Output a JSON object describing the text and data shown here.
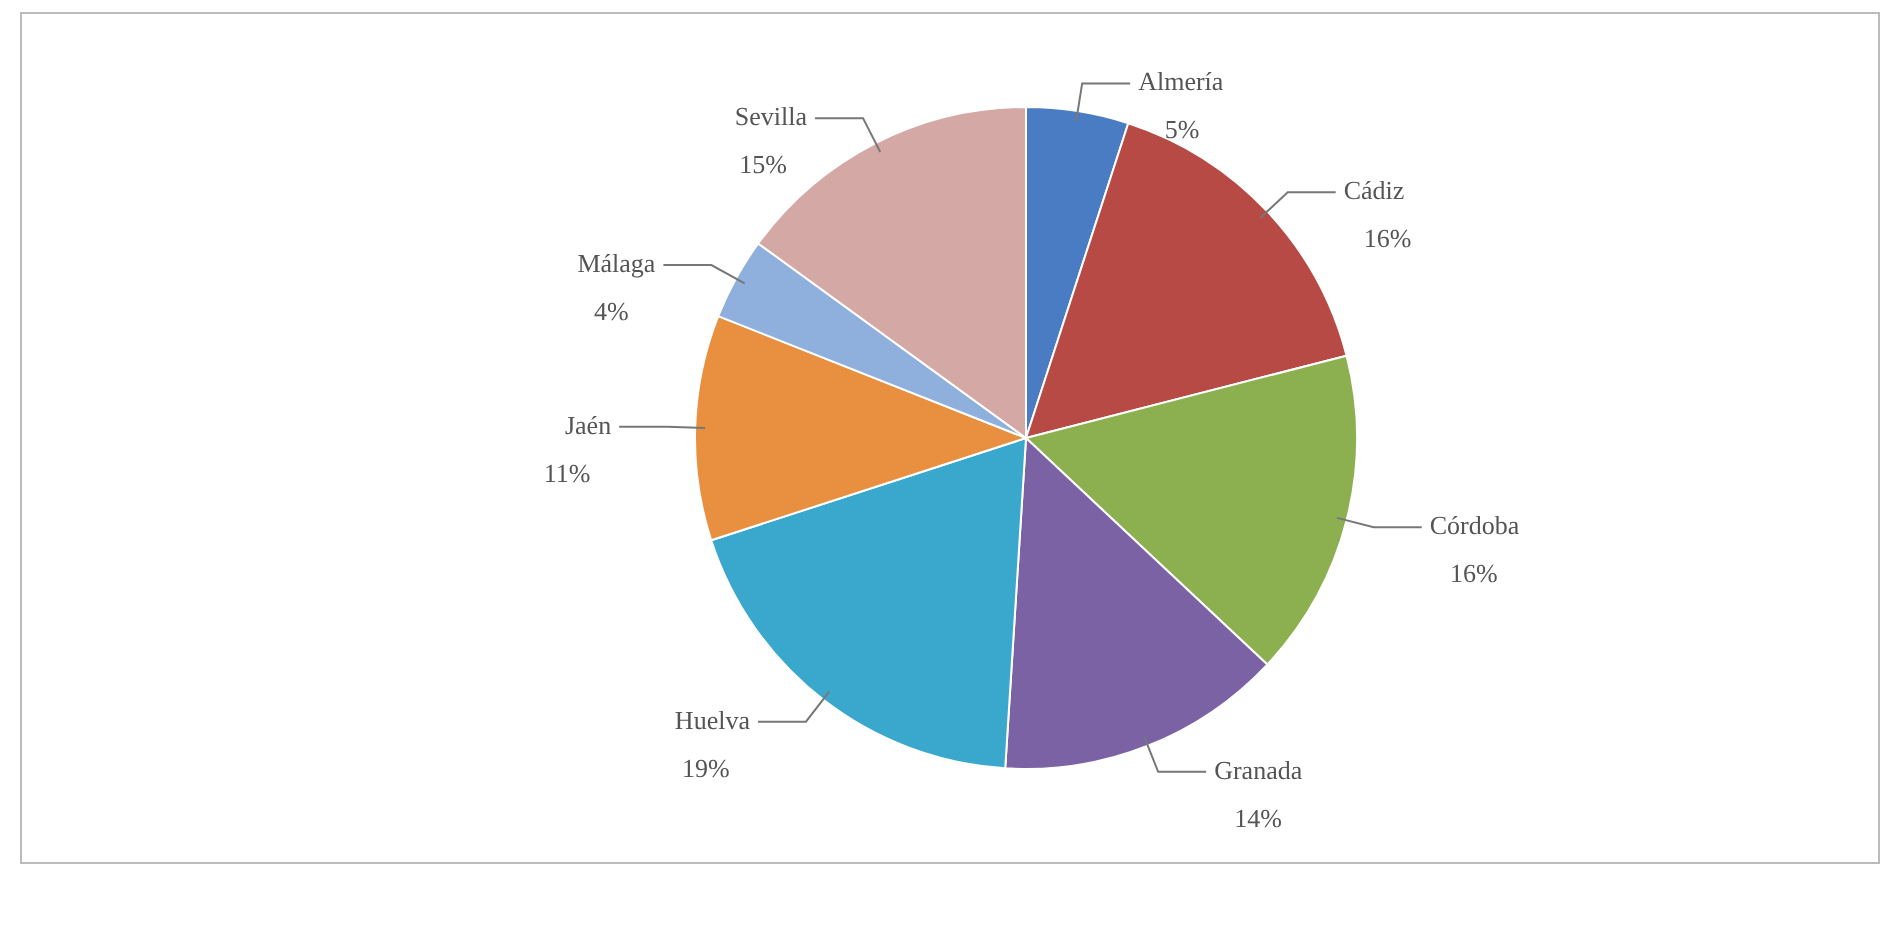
{
  "chart_data": {
    "type": "pie",
    "categories": [
      "Almería",
      "Cádiz",
      "Córdoba",
      "Granada",
      "Huelva",
      "Jaén",
      "Málaga",
      "Sevilla"
    ],
    "values": [
      5,
      16,
      16,
      14,
      19,
      11,
      4,
      15
    ],
    "value_labels": [
      "5%",
      "16%",
      "16%",
      "14%",
      "19%",
      "11%",
      "4%",
      "15%"
    ],
    "colors": [
      "#4a7cc4",
      "#b84a46",
      "#8cb050",
      "#7a62a4",
      "#3aa8cc",
      "#e89040",
      "#8fb0dc",
      "#d4a8a4"
    ],
    "legend": false
  }
}
